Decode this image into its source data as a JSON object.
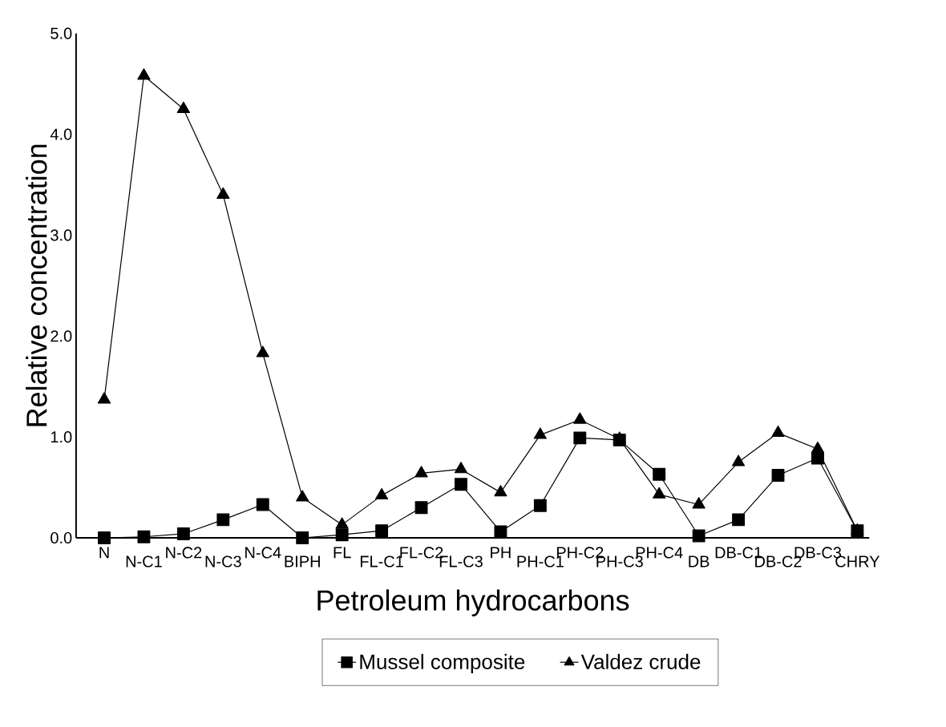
{
  "chart_data": {
    "type": "line",
    "xlabel": "Petroleum hydrocarbons",
    "ylabel": "Relative concentration",
    "categories": [
      "N",
      "N-C1",
      "N-C2",
      "N-C3",
      "N-C4",
      "BIPH",
      "FL",
      "FL-C1",
      "FL-C2",
      "FL-C3",
      "PH",
      "PH-C1",
      "PH-C2",
      "PH-C3",
      "PH-C4",
      "DB",
      "DB-C1",
      "DB-C2",
      "DB-C3",
      "CHRY"
    ],
    "series": [
      {
        "name": "Mussel composite",
        "color": "#000000",
        "marker": "square",
        "values": [
          0.0,
          0.01,
          0.04,
          0.18,
          0.33,
          0.0,
          0.03,
          0.07,
          0.3,
          0.53,
          0.06,
          0.32,
          0.99,
          0.97,
          0.63,
          0.02,
          0.18,
          0.62,
          0.79,
          0.07
        ]
      },
      {
        "name": "Valdez crude",
        "color": "#000000",
        "marker": "triangle",
        "values": [
          1.37,
          4.58,
          4.25,
          3.4,
          1.83,
          0.4,
          0.13,
          0.42,
          0.64,
          0.68,
          0.45,
          1.02,
          1.17,
          0.98,
          0.43,
          0.33,
          0.75,
          1.04,
          0.88,
          0.07
        ]
      }
    ],
    "ylim": [
      0,
      5
    ],
    "yticks": [
      {
        "value": 0,
        "label": "0.0"
      },
      {
        "value": 1,
        "label": "1.0"
      },
      {
        "value": 2,
        "label": "2.0"
      },
      {
        "value": 3,
        "label": "3.0"
      },
      {
        "value": 4,
        "label": "4.0"
      },
      {
        "value": 5,
        "label": "5.0"
      }
    ],
    "grid": false,
    "legend": "bottom",
    "line_style": "solid"
  }
}
